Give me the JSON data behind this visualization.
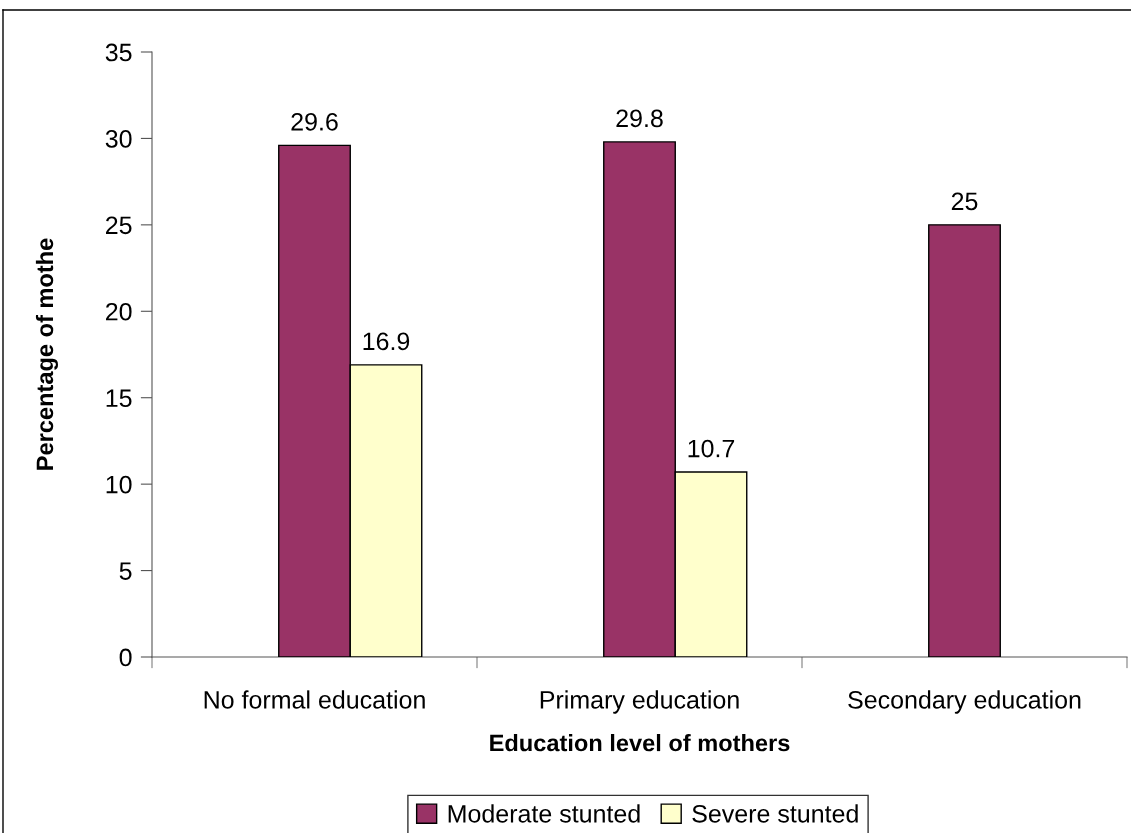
{
  "chart_data": {
    "type": "bar",
    "xlabel": "Education level of mothers",
    "ylabel": "Percentage of mothe",
    "categories": [
      "No formal education",
      "Primary education",
      "Secondary education"
    ],
    "series": [
      {
        "name": "Moderate stunted",
        "color": "#993366",
        "values": [
          29.6,
          29.8,
          25
        ]
      },
      {
        "name": "Severe stunted",
        "color": "#ffffcc",
        "values": [
          16.9,
          10.7,
          null
        ]
      }
    ],
    "ylim": [
      0,
      35
    ],
    "yticks": [
      0,
      5,
      10,
      15,
      20,
      25,
      30,
      35
    ],
    "data_labels": true,
    "legend": "bottom"
  }
}
